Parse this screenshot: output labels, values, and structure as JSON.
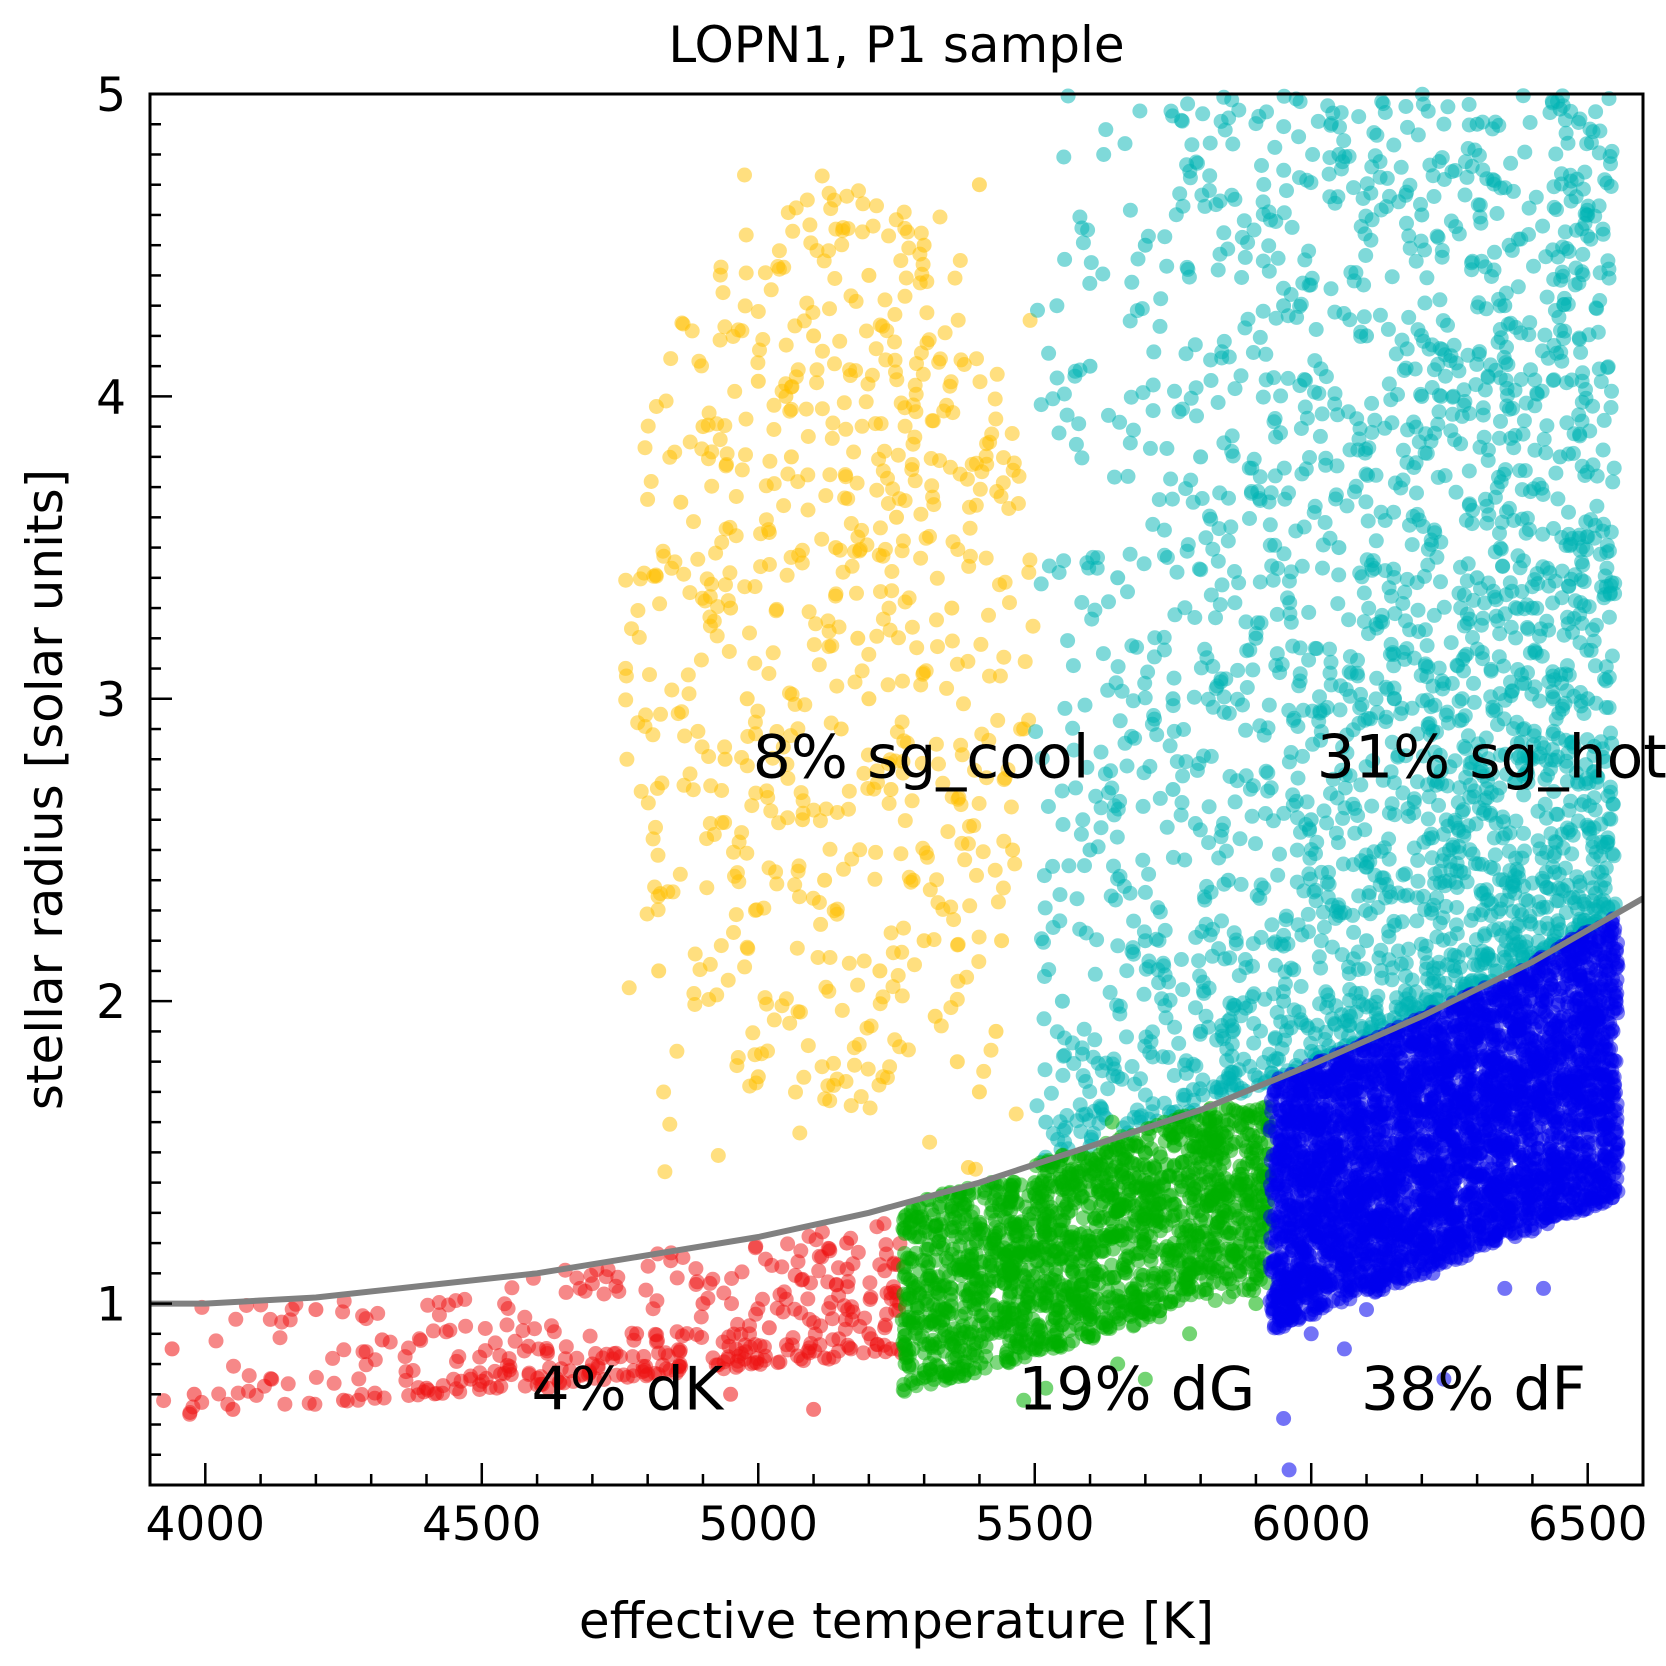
{
  "chart_data": {
    "type": "scatter",
    "title": "LOPN1, P1 sample",
    "xlabel": "effective temperature [K]",
    "ylabel": "stellar radius [solar units]",
    "xlim": [
      3900,
      6600
    ],
    "ylim": [
      0.4,
      5.0
    ],
    "xticks": [
      "4000",
      "4500",
      "5000",
      "5500",
      "6000",
      "6500"
    ],
    "yticks": [
      "1",
      "2",
      "3",
      "4",
      "5"
    ],
    "grid": false,
    "legend": "none",
    "boundary_curve": {
      "color": "#808080",
      "x": [
        3900,
        4000,
        4200,
        4400,
        4600,
        4800,
        5000,
        5200,
        5400,
        5600,
        5800,
        6000,
        6200,
        6400,
        6600
      ],
      "y": [
        1.0,
        1.0,
        1.02,
        1.06,
        1.1,
        1.16,
        1.22,
        1.3,
        1.4,
        1.52,
        1.64,
        1.79,
        1.95,
        2.13,
        2.34
      ]
    },
    "series": [
      {
        "label": "8% sg_cool",
        "color": "#ffc000",
        "label_pos": [
          4990,
          2.74
        ],
        "extent_x": [
          4760,
          5500
        ],
        "extent_y": [
          1.3,
          4.75
        ],
        "points": [
          [
            4820,
            2.1
          ],
          [
            4860,
            3.65
          ],
          [
            4900,
            3.9
          ],
          [
            4950,
            3.3
          ],
          [
            5000,
            4.05
          ],
          [
            5020,
            3.55
          ],
          [
            5060,
            3.8
          ],
          [
            5100,
            4.2
          ],
          [
            5140,
            3.5
          ],
          [
            5180,
            3.2
          ],
          [
            5200,
            3.0
          ],
          [
            5240,
            2.7
          ],
          [
            5280,
            2.4
          ],
          [
            5300,
            2.2
          ],
          [
            5320,
            1.95
          ],
          [
            5360,
            1.8
          ],
          [
            5400,
            1.7
          ],
          [
            5430,
            1.9
          ],
          [
            5460,
            2.5
          ],
          [
            5480,
            2.9
          ],
          [
            4940,
            2.8
          ],
          [
            5080,
            2.6
          ],
          [
            5150,
            2.9
          ],
          [
            5250,
            3.6
          ],
          [
            5350,
            3.3
          ],
          [
            5440,
            2.2
          ],
          [
            5380,
            1.45
          ],
          [
            5000,
            1.75
          ],
          [
            5300,
            4.5
          ],
          [
            5400,
            4.7
          ],
          [
            5200,
            4.4
          ],
          [
            5050,
            4.0
          ],
          [
            4980,
            3.0
          ],
          [
            5120,
            2.4
          ],
          [
            5220,
            2.1
          ]
        ]
      },
      {
        "label": "31% sg_hot",
        "color": "#00b3b3",
        "label_pos": [
          6010,
          2.74
        ],
        "extent_x": [
          5500,
          6550
        ],
        "extent_y": [
          1.45,
          5.0
        ],
        "points": [
          [
            5520,
            1.6
          ],
          [
            5550,
            2.0
          ],
          [
            5600,
            2.5
          ],
          [
            5650,
            1.75
          ],
          [
            5700,
            2.2
          ],
          [
            5750,
            3.0
          ],
          [
            5800,
            1.9
          ],
          [
            5850,
            2.4
          ],
          [
            5900,
            3.2
          ],
          [
            5950,
            2.0
          ],
          [
            6000,
            2.6
          ],
          [
            6050,
            3.5
          ],
          [
            6100,
            2.2
          ],
          [
            6150,
            3.0
          ],
          [
            6200,
            4.0
          ],
          [
            6250,
            2.5
          ],
          [
            6300,
            3.4
          ],
          [
            6350,
            4.3
          ],
          [
            6400,
            2.8
          ],
          [
            6450,
            3.8
          ],
          [
            6500,
            4.6
          ],
          [
            6530,
            2.4
          ],
          [
            5600,
            4.1
          ],
          [
            5700,
            4.5
          ],
          [
            5800,
            3.8
          ],
          [
            5950,
            4.3
          ],
          [
            6050,
            4.8
          ],
          [
            6200,
            4.6
          ],
          [
            6300,
            4.9
          ],
          [
            6450,
            4.95
          ],
          [
            5650,
            3.4
          ],
          [
            5750,
            2.7
          ],
          [
            6100,
            4.2
          ],
          [
            6400,
            3.3
          ],
          [
            6500,
            3.0
          ]
        ]
      },
      {
        "label": "4% dK",
        "color": "#ee1111",
        "label_pos": [
          4590,
          0.65
        ],
        "extent_x": [
          3920,
          5260
        ],
        "extent_y": [
          0.6,
          1.28
        ],
        "points": [
          [
            3940,
            0.85
          ],
          [
            3980,
            0.7
          ],
          [
            4050,
            0.65
          ],
          [
            4120,
            0.75
          ],
          [
            4200,
            0.98
          ],
          [
            4250,
            0.68
          ],
          [
            4320,
            0.88
          ],
          [
            4400,
            0.72
          ],
          [
            4480,
            0.75
          ],
          [
            4550,
            0.78
          ],
          [
            4620,
            0.72
          ],
          [
            4700,
            0.8
          ],
          [
            4780,
            0.9
          ],
          [
            4840,
            0.78
          ],
          [
            4900,
            1.0
          ],
          [
            4960,
            0.85
          ],
          [
            5020,
            0.92
          ],
          [
            5080,
            1.08
          ],
          [
            5120,
            0.82
          ],
          [
            5160,
            1.2
          ],
          [
            5200,
            0.9
          ],
          [
            5240,
            0.85
          ],
          [
            5100,
            0.65
          ],
          [
            4950,
            0.7
          ]
        ]
      },
      {
        "label": "19% dG",
        "color": "#00b000",
        "label_pos": [
          5470,
          0.65
        ],
        "extent_x": [
          5260,
          5925
        ],
        "extent_y": [
          0.68,
          1.65
        ],
        "points": [
          [
            5280,
            0.85
          ],
          [
            5320,
            1.05
          ],
          [
            5380,
            0.78
          ],
          [
            5420,
            1.2
          ],
          [
            5460,
            0.95
          ],
          [
            5520,
            0.72
          ],
          [
            5560,
            1.3
          ],
          [
            5600,
            1.0
          ],
          [
            5650,
            0.8
          ],
          [
            5700,
            1.45
          ],
          [
            5740,
            1.15
          ],
          [
            5780,
            0.9
          ],
          [
            5820,
            1.55
          ],
          [
            5860,
            1.25
          ],
          [
            5900,
            1.0
          ],
          [
            5910,
            1.6
          ],
          [
            5500,
            1.4
          ],
          [
            5640,
            1.6
          ],
          [
            5780,
            1.35
          ],
          [
            5340,
            1.15
          ],
          [
            5480,
            0.68
          ],
          [
            5700,
            0.75
          ]
        ]
      },
      {
        "label": "38% dF",
        "color": "#0000ee",
        "label_pos": [
          6090,
          0.65
        ],
        "extent_x": [
          5925,
          6555
        ],
        "extent_y": [
          0.45,
          2.3
        ],
        "points": [
          [
            5940,
            1.0
          ],
          [
            5980,
            1.5
          ],
          [
            6020,
            1.2
          ],
          [
            6060,
            1.75
          ],
          [
            6100,
            0.98
          ],
          [
            6140,
            1.4
          ],
          [
            6180,
            1.85
          ],
          [
            6220,
            1.1
          ],
          [
            6260,
            1.6
          ],
          [
            6300,
            2.0
          ],
          [
            6340,
            1.25
          ],
          [
            6380,
            1.7
          ],
          [
            6420,
            2.1
          ],
          [
            6460,
            1.3
          ],
          [
            6500,
            1.9
          ],
          [
            6530,
            2.25
          ],
          [
            6540,
            1.45
          ],
          [
            5960,
            0.45
          ],
          [
            5950,
            0.62
          ],
          [
            6000,
            0.9
          ],
          [
            6060,
            0.85
          ],
          [
            6240,
            0.75
          ],
          [
            6350,
            1.05
          ],
          [
            6420,
            1.05
          ]
        ]
      }
    ]
  }
}
